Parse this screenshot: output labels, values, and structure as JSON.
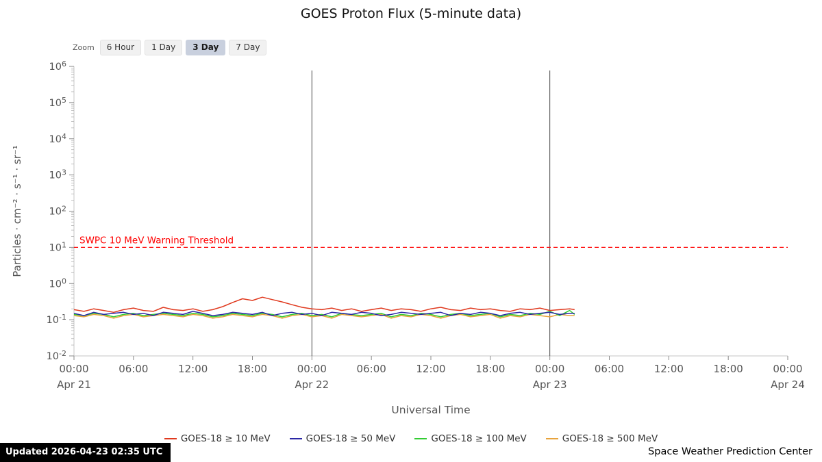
{
  "title": "GOES Proton Flux (5-minute data)",
  "zoom": {
    "label": "Zoom",
    "buttons": [
      {
        "label": "6 Hour",
        "selected": false
      },
      {
        "label": "1 Day",
        "selected": false
      },
      {
        "label": "3 Day",
        "selected": true
      },
      {
        "label": "7 Day",
        "selected": false
      }
    ]
  },
  "footer": {
    "updated": "Updated 2026-04-23 02:35 UTC",
    "source": "Space Weather Prediction Center"
  },
  "chart_data": {
    "type": "line",
    "title": "GOES Proton Flux (5-minute data)",
    "xlabel": "Universal Time",
    "ylabel": "Particles · cm⁻² · s⁻¹ · sr⁻¹",
    "y_scale": "log",
    "grid": false,
    "legend_position": "bottom",
    "ylim_exponents": [
      -2,
      6
    ],
    "y_tick_exponents": [
      6,
      5,
      4,
      3,
      2,
      1,
      0,
      -1,
      -2
    ],
    "x_hours_range": [
      0,
      72
    ],
    "x_major_ticks": [
      {
        "hour": 0,
        "label": "00:00"
      },
      {
        "hour": 6,
        "label": "06:00"
      },
      {
        "hour": 12,
        "label": "12:00"
      },
      {
        "hour": 18,
        "label": "18:00"
      },
      {
        "hour": 24,
        "label": "00:00"
      },
      {
        "hour": 30,
        "label": "06:00"
      },
      {
        "hour": 36,
        "label": "12:00"
      },
      {
        "hour": 42,
        "label": "18:00"
      },
      {
        "hour": 48,
        "label": "00:00"
      },
      {
        "hour": 54,
        "label": "06:00"
      },
      {
        "hour": 60,
        "label": "12:00"
      },
      {
        "hour": 66,
        "label": "18:00"
      },
      {
        "hour": 72,
        "label": "00:00"
      }
    ],
    "x_day_labels": [
      {
        "hour": 0,
        "label": "Apr 21"
      },
      {
        "hour": 24,
        "label": "Apr 22"
      },
      {
        "hour": 48,
        "label": "Apr 23"
      },
      {
        "hour": 72,
        "label": "Apr 24"
      }
    ],
    "day_boundary_lines_hours": [
      24,
      48
    ],
    "threshold": {
      "label": "SWPC 10 MeV Warning Threshold",
      "value": 10,
      "color": "#ff0000"
    },
    "x_hours": [
      0,
      1,
      2,
      3,
      4,
      5,
      6,
      7,
      8,
      9,
      10,
      11,
      12,
      13,
      14,
      15,
      16,
      17,
      18,
      19,
      20,
      21,
      22,
      23,
      24,
      25,
      26,
      27,
      28,
      29,
      30,
      31,
      32,
      33,
      34,
      35,
      36,
      37,
      38,
      39,
      40,
      41,
      42,
      43,
      44,
      45,
      46,
      47,
      48,
      49,
      50,
      50.5
    ],
    "series": [
      {
        "name": "GOES-18 ≥ 10 MeV",
        "color": "#e0391e",
        "values": [
          0.19,
          0.17,
          0.2,
          0.18,
          0.16,
          0.19,
          0.21,
          0.18,
          0.17,
          0.22,
          0.19,
          0.18,
          0.2,
          0.17,
          0.19,
          0.23,
          0.3,
          0.38,
          0.34,
          0.42,
          0.36,
          0.31,
          0.26,
          0.22,
          0.2,
          0.19,
          0.21,
          0.18,
          0.2,
          0.17,
          0.19,
          0.21,
          0.18,
          0.2,
          0.19,
          0.17,
          0.2,
          0.22,
          0.19,
          0.18,
          0.21,
          0.19,
          0.2,
          0.18,
          0.17,
          0.2,
          0.19,
          0.21,
          0.18,
          0.19,
          0.2,
          0.19
        ]
      },
      {
        "name": "GOES-18 ≥ 50 MeV",
        "color": "#2b27a5",
        "values": [
          0.15,
          0.13,
          0.16,
          0.14,
          0.15,
          0.16,
          0.14,
          0.15,
          0.13,
          0.16,
          0.15,
          0.14,
          0.17,
          0.15,
          0.13,
          0.14,
          0.16,
          0.15,
          0.14,
          0.16,
          0.13,
          0.15,
          0.16,
          0.14,
          0.15,
          0.13,
          0.16,
          0.15,
          0.14,
          0.16,
          0.15,
          0.13,
          0.14,
          0.16,
          0.15,
          0.14,
          0.15,
          0.16,
          0.13,
          0.15,
          0.14,
          0.16,
          0.15,
          0.13,
          0.15,
          0.16,
          0.14,
          0.15,
          0.16,
          0.14,
          0.15,
          0.15
        ]
      },
      {
        "name": "GOES-18 ≥ 100 MeV",
        "color": "#33cc33",
        "values": [
          0.14,
          0.13,
          0.15,
          0.14,
          0.12,
          0.14,
          0.15,
          0.13,
          0.14,
          0.15,
          0.14,
          0.13,
          0.15,
          0.14,
          0.12,
          0.13,
          0.15,
          0.14,
          0.13,
          0.15,
          0.14,
          0.12,
          0.14,
          0.15,
          0.13,
          0.14,
          0.12,
          0.15,
          0.14,
          0.13,
          0.14,
          0.15,
          0.12,
          0.14,
          0.13,
          0.15,
          0.14,
          0.12,
          0.14,
          0.15,
          0.13,
          0.14,
          0.15,
          0.12,
          0.14,
          0.13,
          0.15,
          0.14,
          0.17,
          0.13,
          0.18,
          0.14
        ]
      },
      {
        "name": "GOES-18 ≥ 500 MeV",
        "color": "#e8a33c",
        "values": [
          0.13,
          0.12,
          0.14,
          0.13,
          0.11,
          0.13,
          0.14,
          0.12,
          0.13,
          0.14,
          0.13,
          0.12,
          0.14,
          0.13,
          0.11,
          0.12,
          0.14,
          0.13,
          0.12,
          0.14,
          0.13,
          0.11,
          0.13,
          0.14,
          0.12,
          0.13,
          0.11,
          0.14,
          0.13,
          0.12,
          0.13,
          0.14,
          0.11,
          0.13,
          0.12,
          0.14,
          0.13,
          0.11,
          0.13,
          0.14,
          0.12,
          0.13,
          0.14,
          0.11,
          0.13,
          0.12,
          0.14,
          0.13,
          0.12,
          0.14,
          0.13,
          0.13
        ]
      }
    ]
  }
}
